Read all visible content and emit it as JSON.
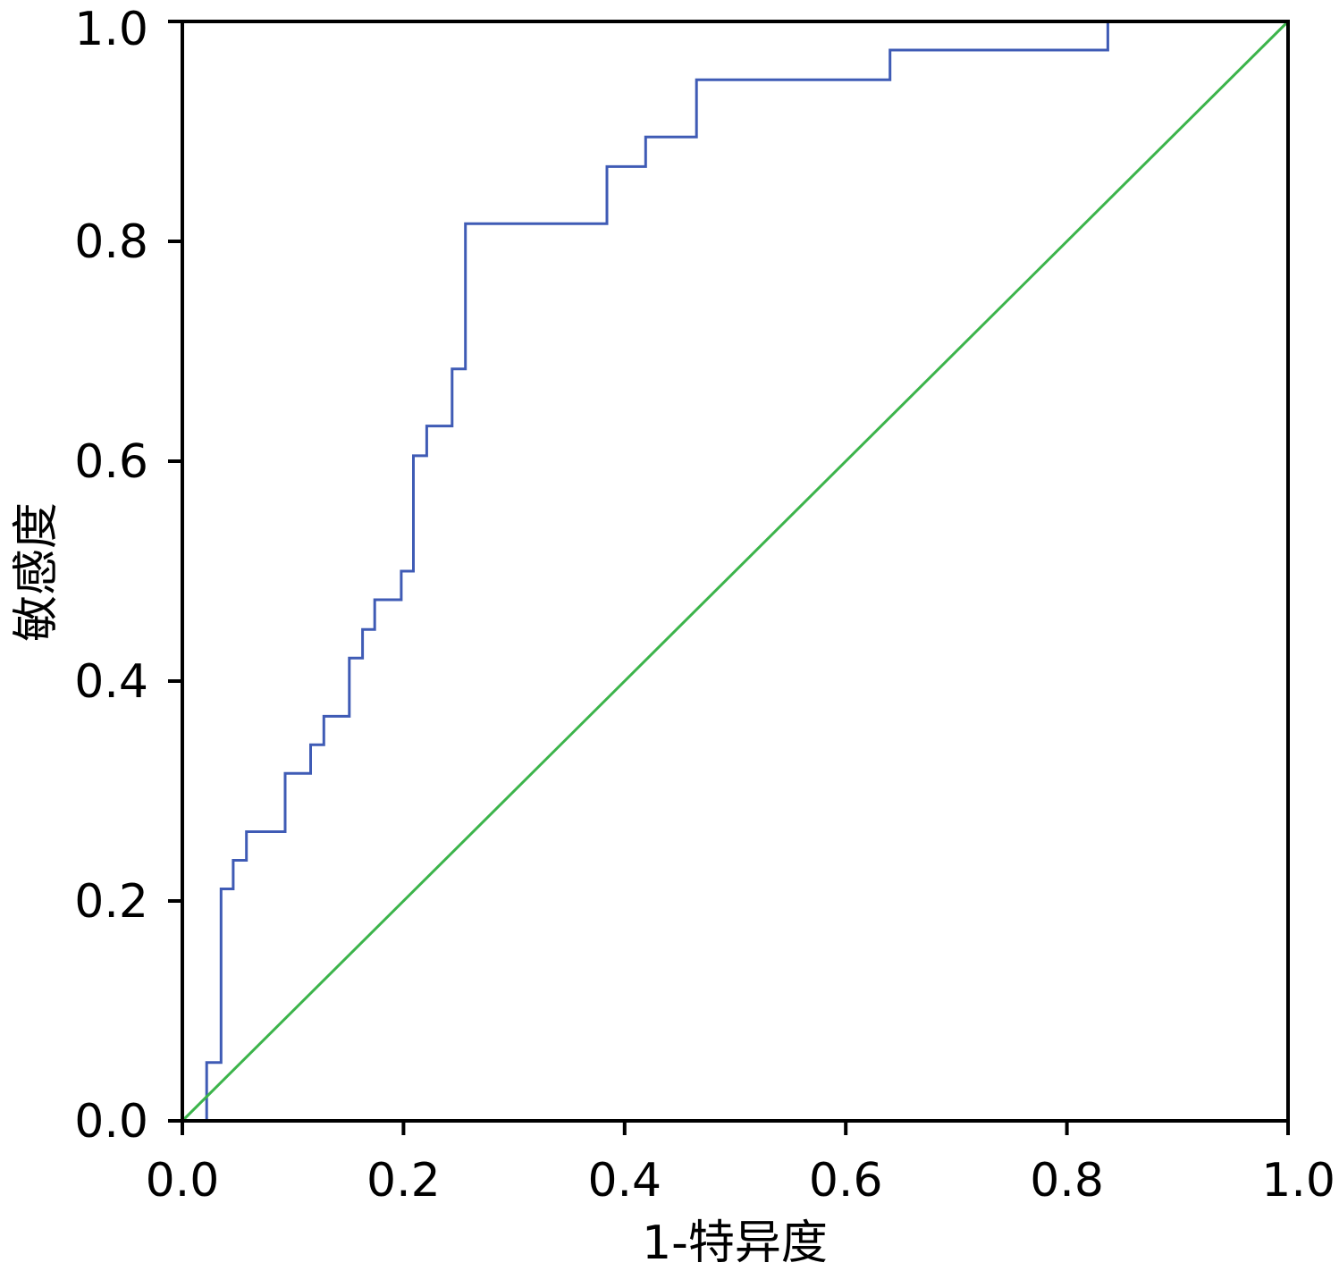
{
  "chart_data": {
    "type": "line",
    "xlabel": "1-特异度",
    "ylabel": "敏感度",
    "xlim": [
      0.0,
      1.0
    ],
    "ylim": [
      0.0,
      1.0
    ],
    "xticks": [
      "0.0",
      "0.2",
      "0.4",
      "0.6",
      "0.8",
      "1.0"
    ],
    "yticks": [
      "0.0",
      "0.2",
      "0.4",
      "0.6",
      "0.8",
      "1.0"
    ],
    "grid": false,
    "legend": "none",
    "series": [
      {
        "color": "#3f5bb5",
        "step": true,
        "x": [
          0.022,
          0.022,
          0.035,
          0.035,
          0.046,
          0.046,
          0.058,
          0.058,
          0.093,
          0.093,
          0.116,
          0.116,
          0.128,
          0.128,
          0.151,
          0.151,
          0.163,
          0.163,
          0.174,
          0.174,
          0.198,
          0.198,
          0.209,
          0.209,
          0.221,
          0.221,
          0.244,
          0.244,
          0.256,
          0.256,
          0.384,
          0.384,
          0.419,
          0.419,
          0.465,
          0.465,
          0.64,
          0.64,
          0.837,
          0.837,
          1.0
        ],
        "y": [
          0.0,
          0.053,
          0.053,
          0.211,
          0.211,
          0.237,
          0.237,
          0.263,
          0.263,
          0.316,
          0.316,
          0.342,
          0.342,
          0.368,
          0.368,
          0.421,
          0.421,
          0.447,
          0.447,
          0.474,
          0.474,
          0.5,
          0.5,
          0.605,
          0.605,
          0.632,
          0.632,
          0.684,
          0.684,
          0.816,
          0.816,
          0.868,
          0.868,
          0.895,
          0.895,
          0.947,
          0.947,
          0.974,
          0.974,
          1.0,
          1.0
        ]
      },
      {
        "color": "#3cb44b",
        "x": [
          0.0,
          1.0
        ],
        "y": [
          0.0,
          1.0
        ]
      }
    ]
  }
}
